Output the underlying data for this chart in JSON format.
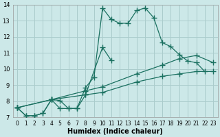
{
  "title": "",
  "xlabel": "Humidex (Indice chaleur)",
  "ylabel": "",
  "bg_color": "#cce8e8",
  "grid_color": "#aacccc",
  "line_color": "#1a7060",
  "xlim": [
    -0.5,
    23.5
  ],
  "ylim": [
    7,
    14
  ],
  "xticks": [
    0,
    1,
    2,
    3,
    4,
    5,
    6,
    7,
    8,
    9,
    10,
    11,
    12,
    13,
    14,
    15,
    16,
    17,
    18,
    19,
    20,
    21,
    22,
    23
  ],
  "yticks": [
    7,
    8,
    9,
    10,
    11,
    12,
    13,
    14
  ],
  "line1_x": [
    0,
    1,
    2,
    3,
    4,
    5,
    6,
    7,
    8,
    9,
    10,
    11,
    12,
    13,
    14,
    15,
    16,
    17,
    18,
    19,
    20,
    21,
    22
  ],
  "line1_y": [
    7.6,
    7.1,
    7.1,
    7.25,
    8.1,
    8.05,
    7.55,
    7.55,
    8.85,
    9.5,
    13.8,
    13.1,
    12.85,
    12.85,
    13.65,
    13.8,
    13.2,
    11.65,
    11.4,
    10.9,
    10.5,
    10.4,
    9.85
  ],
  "line2_x": [
    0,
    1,
    2,
    3,
    4,
    5,
    6,
    7,
    8,
    10,
    11
  ],
  "line2_y": [
    7.6,
    7.1,
    7.1,
    7.25,
    8.1,
    7.55,
    7.55,
    7.55,
    8.4,
    11.35,
    10.55
  ],
  "line3_x": [
    0,
    4,
    8,
    10,
    14,
    17,
    19,
    21,
    23
  ],
  "line3_y": [
    7.6,
    8.1,
    8.4,
    8.55,
    9.2,
    9.55,
    9.7,
    9.85,
    9.85
  ],
  "line4_x": [
    0,
    4,
    8,
    10,
    14,
    17,
    19,
    21,
    23
  ],
  "line4_y": [
    7.6,
    8.1,
    8.65,
    8.9,
    9.7,
    10.25,
    10.65,
    10.85,
    10.4
  ],
  "marker_size": 3.5,
  "linewidth": 0.9
}
